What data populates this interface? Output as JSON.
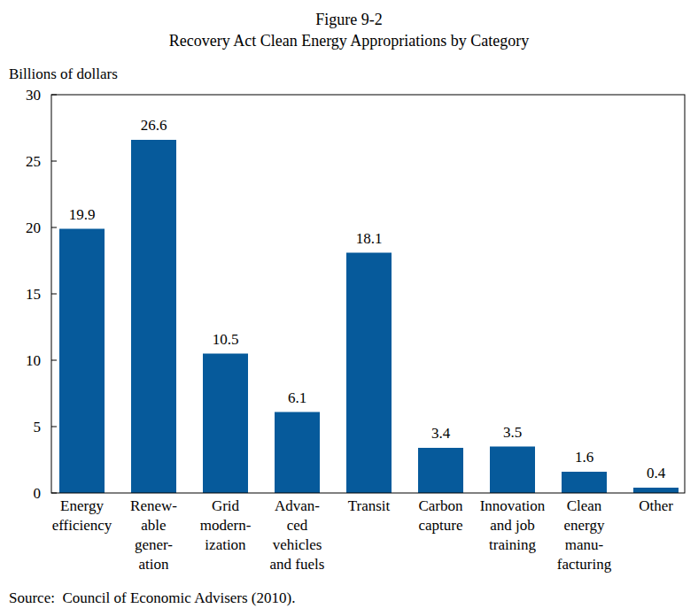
{
  "chart_data": {
    "type": "bar",
    "title": "Figure 9-2",
    "subtitle": "Recovery Act Clean Energy Appropriations by Category",
    "y_label": "Billions of dollars",
    "source": "Source:  Council of Economic Advisers (2010).",
    "categories": [
      "Energy\nefficiency",
      "Renew-\nable\ngener-\nation",
      "Grid\nmodern-\nization",
      "Advan-\nced\nvehicles\nand fuels",
      "Transit",
      "Carbon\ncapture",
      "Innovation\nand job\ntraining",
      "Clean\nenergy\nmanu-\nfacturing",
      "Other"
    ],
    "values": [
      19.9,
      26.6,
      10.5,
      6.1,
      18.1,
      3.4,
      3.5,
      1.6,
      0.4
    ],
    "color": "#065a9b",
    "ylim": [
      0,
      30
    ],
    "yticks": [
      0,
      5,
      10,
      15,
      20,
      25,
      30
    ],
    "grid": false,
    "data_labels": true
  }
}
